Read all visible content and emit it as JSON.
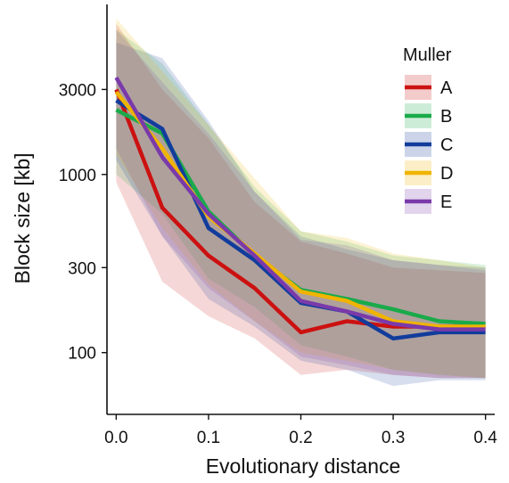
{
  "chart_data": {
    "type": "line",
    "xlabel": "Evolutionary distance",
    "ylabel": "Block size [kb]",
    "x_scale": "linear",
    "y_scale": "log",
    "xlim": [
      -0.01,
      0.41
    ],
    "ylim": [
      45,
      9000
    ],
    "x_ticks": [
      0.0,
      0.1,
      0.2,
      0.3,
      0.4
    ],
    "x_tick_labels": [
      "0.0",
      "0.1",
      "0.2",
      "0.3",
      "0.4"
    ],
    "y_ticks": [
      100,
      300,
      1000,
      3000
    ],
    "y_tick_labels": [
      "100",
      "300",
      "1000",
      "3000"
    ],
    "grid": false,
    "legend": {
      "title": "Muller",
      "position": "top-right"
    },
    "x": [
      0.0,
      0.05,
      0.1,
      0.15,
      0.2,
      0.25,
      0.3,
      0.35,
      0.4
    ],
    "series": [
      {
        "name": "A",
        "color": "#cc1111",
        "values": [
          3000,
          650,
          350,
          230,
          130,
          150,
          140,
          140,
          140
        ],
        "lower": [
          900,
          250,
          160,
          120,
          75,
          80,
          75,
          72,
          72
        ],
        "upper": [
          7000,
          3000,
          1600,
          700,
          420,
          360,
          300,
          290,
          280
        ]
      },
      {
        "name": "B",
        "color": "#1aaa4a",
        "values": [
          2300,
          1700,
          620,
          350,
          225,
          200,
          175,
          150,
          145
        ],
        "lower": [
          1000,
          600,
          260,
          180,
          110,
          95,
          80,
          75,
          72
        ],
        "upper": [
          6500,
          4200,
          1900,
          850,
          480,
          420,
          350,
          330,
          310
        ]
      },
      {
        "name": "C",
        "color": "#123c9c",
        "values": [
          2600,
          1800,
          500,
          330,
          190,
          170,
          120,
          130,
          130
        ],
        "lower": [
          1200,
          450,
          200,
          140,
          90,
          80,
          65,
          70,
          70
        ],
        "upper": [
          5500,
          4500,
          2000,
          800,
          450,
          380,
          330,
          310,
          300
        ]
      },
      {
        "name": "D",
        "color": "#f0b400",
        "values": [
          2900,
          1400,
          580,
          360,
          220,
          195,
          150,
          140,
          140
        ],
        "lower": [
          1300,
          500,
          240,
          150,
          100,
          90,
          80,
          75,
          72
        ],
        "upper": [
          7500,
          3800,
          1900,
          950,
          480,
          440,
          360,
          330,
          300
        ]
      },
      {
        "name": "E",
        "color": "#7a3aaa",
        "values": [
          3500,
          1250,
          600,
          350,
          195,
          170,
          145,
          135,
          135
        ],
        "lower": [
          1400,
          450,
          230,
          150,
          95,
          85,
          75,
          72,
          72
        ],
        "upper": [
          6500,
          3300,
          1700,
          800,
          430,
          400,
          330,
          310,
          290
        ]
      }
    ]
  }
}
